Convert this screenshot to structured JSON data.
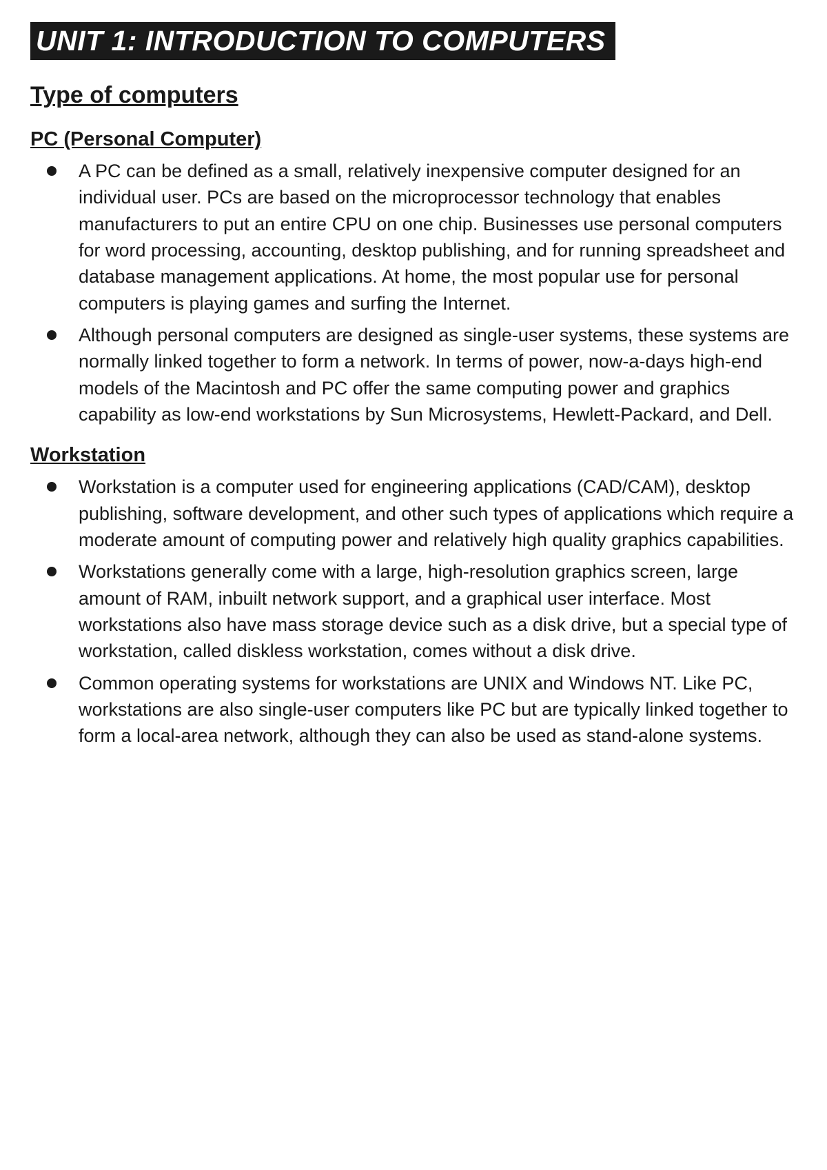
{
  "colors": {
    "background": "#ffffff",
    "text": "#1a1a1a",
    "title_bg": "#1a1a1a",
    "title_text": "#ffffff",
    "bullet": "#1a1a1a"
  },
  "typography": {
    "font_family": "Arial, Helvetica, sans-serif",
    "unit_title_fontsize": 41,
    "section_title_fontsize": 34,
    "sub_title_fontsize": 29,
    "body_fontsize": 27,
    "line_height": 1.42
  },
  "unit_title": "UNIT 1: INTRODUCTION TO COMPUTERS",
  "section_title": "Type of computers",
  "sections": [
    {
      "heading": "PC (Personal Computer)",
      "bullets": [
        "A PC can be defined as a small, relatively inexpensive computer designed for an individual user. PCs are based on the microprocessor technology that enables manufacturers to put an entire CPU on one chip. Businesses use personal computers for word processing, accounting, desktop publishing, and for running spreadsheet and database management applications. At home, the most popular use for personal computers is playing games and surfing the Internet.",
        "Although personal computers are designed as single-user systems, these systems are normally linked together to form a network. In terms of power, now-a-days high-end models of the Macintosh and PC offer the same computing power and graphics capability as low-end workstations by Sun Microsystems, Hewlett-Packard, and Dell."
      ]
    },
    {
      "heading": "Workstation",
      "bullets": [
        "Workstation is a computer used for engineering applications (CAD/CAM), desktop publishing, software development, and other such types of applications which require a moderate amount of computing power and relatively high quality graphics capabilities.",
        "Workstations generally come with a large, high-resolution graphics screen, large amount of RAM, inbuilt network support, and a graphical user interface. Most workstations also have mass storage device such as a disk drive, but a special type of workstation, called diskless workstation, comes without a disk drive.",
        "Common operating systems for workstations are UNIX and Windows NT. Like PC, workstations are also single-user computers like PC but are typically linked together to form a local-area network, although they can also be used as stand-alone systems."
      ]
    }
  ]
}
